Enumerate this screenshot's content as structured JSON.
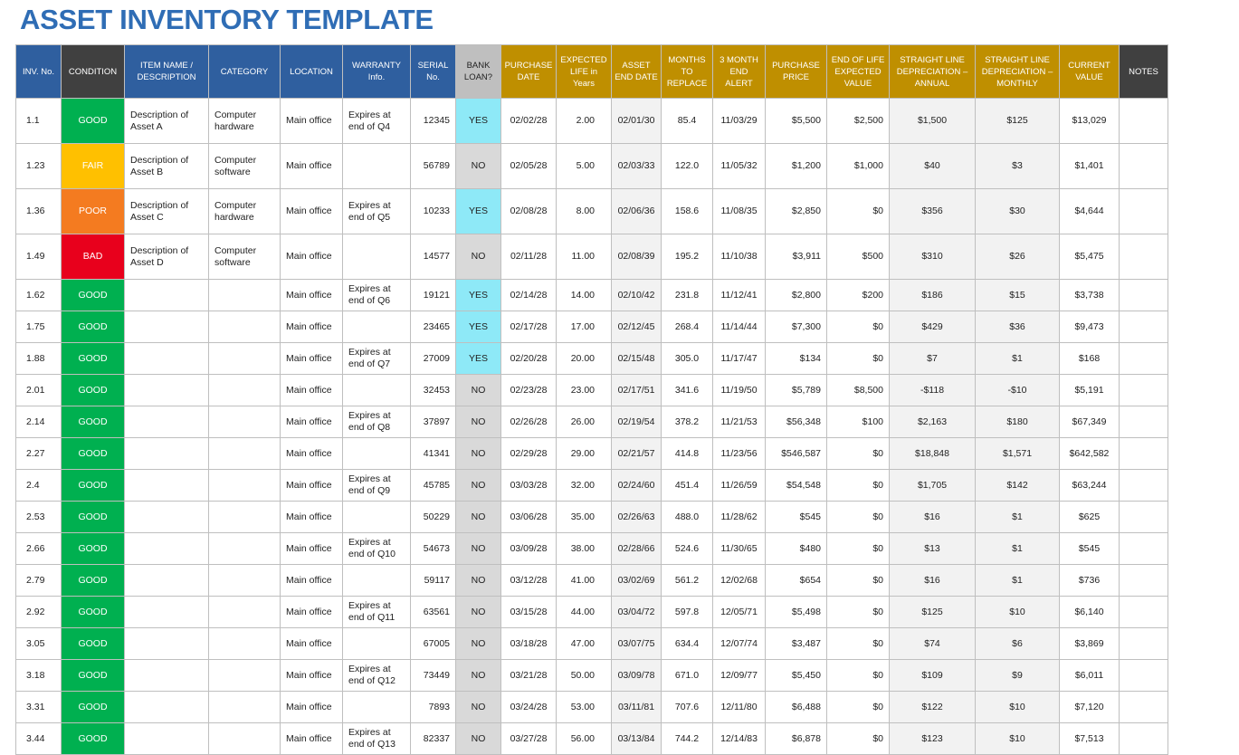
{
  "title": "ASSET INVENTORY TEMPLATE",
  "highlight": {
    "GOOD": "#00b050",
    "FAIR": "#ffc000",
    "POOR": "#f47b20",
    "BAD": "#e8001c",
    "YES": "#8ee9f7"
  },
  "table": {
    "header": [
      "INV. No.",
      "CONDITION",
      "ITEM NAME / DESCRIPTION",
      "CATEGORY",
      "LOCATION",
      "WARRANTY Info.",
      "SERIAL No.",
      "BANK LOAN?",
      "PURCHASE DATE",
      "EXPECTED LIFE in Years",
      "ASSET END DATE",
      "MONTHS TO REPLACE",
      "3 MONTH END ALERT",
      "PURCHASE PRICE",
      "END OF LIFE EXPECTED VALUE",
      "STRAIGHT LINE DEPRECIATION – ANNUAL",
      "STRAIGHT LINE DEPRECIATION – MONTHLY",
      "CURRENT VALUE",
      "NOTES"
    ],
    "rows": [
      [
        "1.1",
        "GOOD",
        "Description of Asset A",
        "Computer hardware",
        "Main office",
        "Expires at end of Q4",
        "12345",
        "YES",
        "02/02/28",
        "2.00",
        "02/01/30",
        "85.4",
        "11/03/29",
        "$5,500",
        "$2,500",
        "$1,500",
        "$125",
        "$13,029",
        null
      ],
      [
        "1.23",
        "FAIR",
        "Description of Asset B",
        "Computer software",
        "Main office",
        null,
        "56789",
        "NO",
        "02/05/28",
        "5.00",
        "02/03/33",
        "122.0",
        "11/05/32",
        "$1,200",
        "$1,000",
        "$40",
        "$3",
        "$1,401",
        null
      ],
      [
        "1.36",
        "POOR",
        "Description of Asset C",
        "Computer hardware",
        "Main office",
        "Expires at end of Q5",
        "10233",
        "YES",
        "02/08/28",
        "8.00",
        "02/06/36",
        "158.6",
        "11/08/35",
        "$2,850",
        "$0",
        "$356",
        "$30",
        "$4,644",
        null
      ],
      [
        "1.49",
        "BAD",
        "Description of Asset D",
        "Computer software",
        "Main office",
        null,
        "14577",
        "NO",
        "02/11/28",
        "11.00",
        "02/08/39",
        "195.2",
        "11/10/38",
        "$3,911",
        "$500",
        "$310",
        "$26",
        "$5,475",
        null
      ],
      [
        "1.62",
        "GOOD",
        null,
        null,
        "Main office",
        "Expires at end of Q6",
        "19121",
        "YES",
        "02/14/28",
        "14.00",
        "02/10/42",
        "231.8",
        "11/12/41",
        "$2,800",
        "$200",
        "$186",
        "$15",
        "$3,738",
        null
      ],
      [
        "1.75",
        "GOOD",
        null,
        null,
        "Main office",
        null,
        "23465",
        "YES",
        "02/17/28",
        "17.00",
        "02/12/45",
        "268.4",
        "11/14/44",
        "$7,300",
        "$0",
        "$429",
        "$36",
        "$9,473",
        null
      ],
      [
        "1.88",
        "GOOD",
        null,
        null,
        "Main office",
        "Expires at end of Q7",
        "27009",
        "YES",
        "02/20/28",
        "20.00",
        "02/15/48",
        "305.0",
        "11/17/47",
        "$134",
        "$0",
        "$7",
        "$1",
        "$168",
        null
      ],
      [
        "2.01",
        "GOOD",
        null,
        null,
        "Main office",
        null,
        "32453",
        "NO",
        "02/23/28",
        "23.00",
        "02/17/51",
        "341.6",
        "11/19/50",
        "$5,789",
        "$8,500",
        "-$118",
        "-$10",
        "$5,191",
        null
      ],
      [
        "2.14",
        "GOOD",
        null,
        null,
        "Main office",
        "Expires at end of Q8",
        "37897",
        "NO",
        "02/26/28",
        "26.00",
        "02/19/54",
        "378.2",
        "11/21/53",
        "$56,348",
        "$100",
        "$2,163",
        "$180",
        "$67,349",
        null
      ],
      [
        "2.27",
        "GOOD",
        null,
        null,
        "Main office",
        null,
        "41341",
        "NO",
        "02/29/28",
        "29.00",
        "02/21/57",
        "414.8",
        "11/23/56",
        "$546,587",
        "$0",
        "$18,848",
        "$1,571",
        "$642,582",
        null
      ],
      [
        "2.4",
        "GOOD",
        null,
        null,
        "Main office",
        "Expires at end of Q9",
        "45785",
        "NO",
        "03/03/28",
        "32.00",
        "02/24/60",
        "451.4",
        "11/26/59",
        "$54,548",
        "$0",
        "$1,705",
        "$142",
        "$63,244",
        null
      ],
      [
        "2.53",
        "GOOD",
        null,
        null,
        "Main office",
        null,
        "50229",
        "NO",
        "03/06/28",
        "35.00",
        "02/26/63",
        "488.0",
        "11/28/62",
        "$545",
        "$0",
        "$16",
        "$1",
        "$625",
        null
      ],
      [
        "2.66",
        "GOOD",
        null,
        null,
        "Main office",
        "Expires at end of Q10",
        "54673",
        "NO",
        "03/09/28",
        "38.00",
        "02/28/66",
        "524.6",
        "11/30/65",
        "$480",
        "$0",
        "$13",
        "$1",
        "$545",
        null
      ],
      [
        "2.79",
        "GOOD",
        null,
        null,
        "Main office",
        null,
        "59117",
        "NO",
        "03/12/28",
        "41.00",
        "03/02/69",
        "561.2",
        "12/02/68",
        "$654",
        "$0",
        "$16",
        "$1",
        "$736",
        null
      ],
      [
        "2.92",
        "GOOD",
        null,
        null,
        "Main office",
        "Expires at end of Q11",
        "63561",
        "NO",
        "03/15/28",
        "44.00",
        "03/04/72",
        "597.8",
        "12/05/71",
        "$5,498",
        "$0",
        "$125",
        "$10",
        "$6,140",
        null
      ],
      [
        "3.05",
        "GOOD",
        null,
        null,
        "Main office",
        null,
        "67005",
        "NO",
        "03/18/28",
        "47.00",
        "03/07/75",
        "634.4",
        "12/07/74",
        "$3,487",
        "$0",
        "$74",
        "$6",
        "$3,869",
        null
      ],
      [
        "3.18",
        "GOOD",
        null,
        null,
        "Main office",
        "Expires at end of Q12",
        "73449",
        "NO",
        "03/21/28",
        "50.00",
        "03/09/78",
        "671.0",
        "12/09/77",
        "$5,450",
        "$0",
        "$109",
        "$9",
        "$6,011",
        null
      ],
      [
        "3.31",
        "GOOD",
        null,
        null,
        "Main office",
        null,
        "7893",
        "NO",
        "03/24/28",
        "53.00",
        "03/11/81",
        "707.6",
        "12/11/80",
        "$6,488",
        "$0",
        "$122",
        "$10",
        "$7,120",
        null
      ],
      [
        "3.44",
        "GOOD",
        null,
        null,
        "Main office",
        "Expires at end of Q13",
        "82337",
        "NO",
        "03/27/28",
        "56.00",
        "03/13/84",
        "744.2",
        "12/14/83",
        "$6,878",
        "$0",
        "$123",
        "$10",
        "$7,513",
        null
      ]
    ]
  }
}
